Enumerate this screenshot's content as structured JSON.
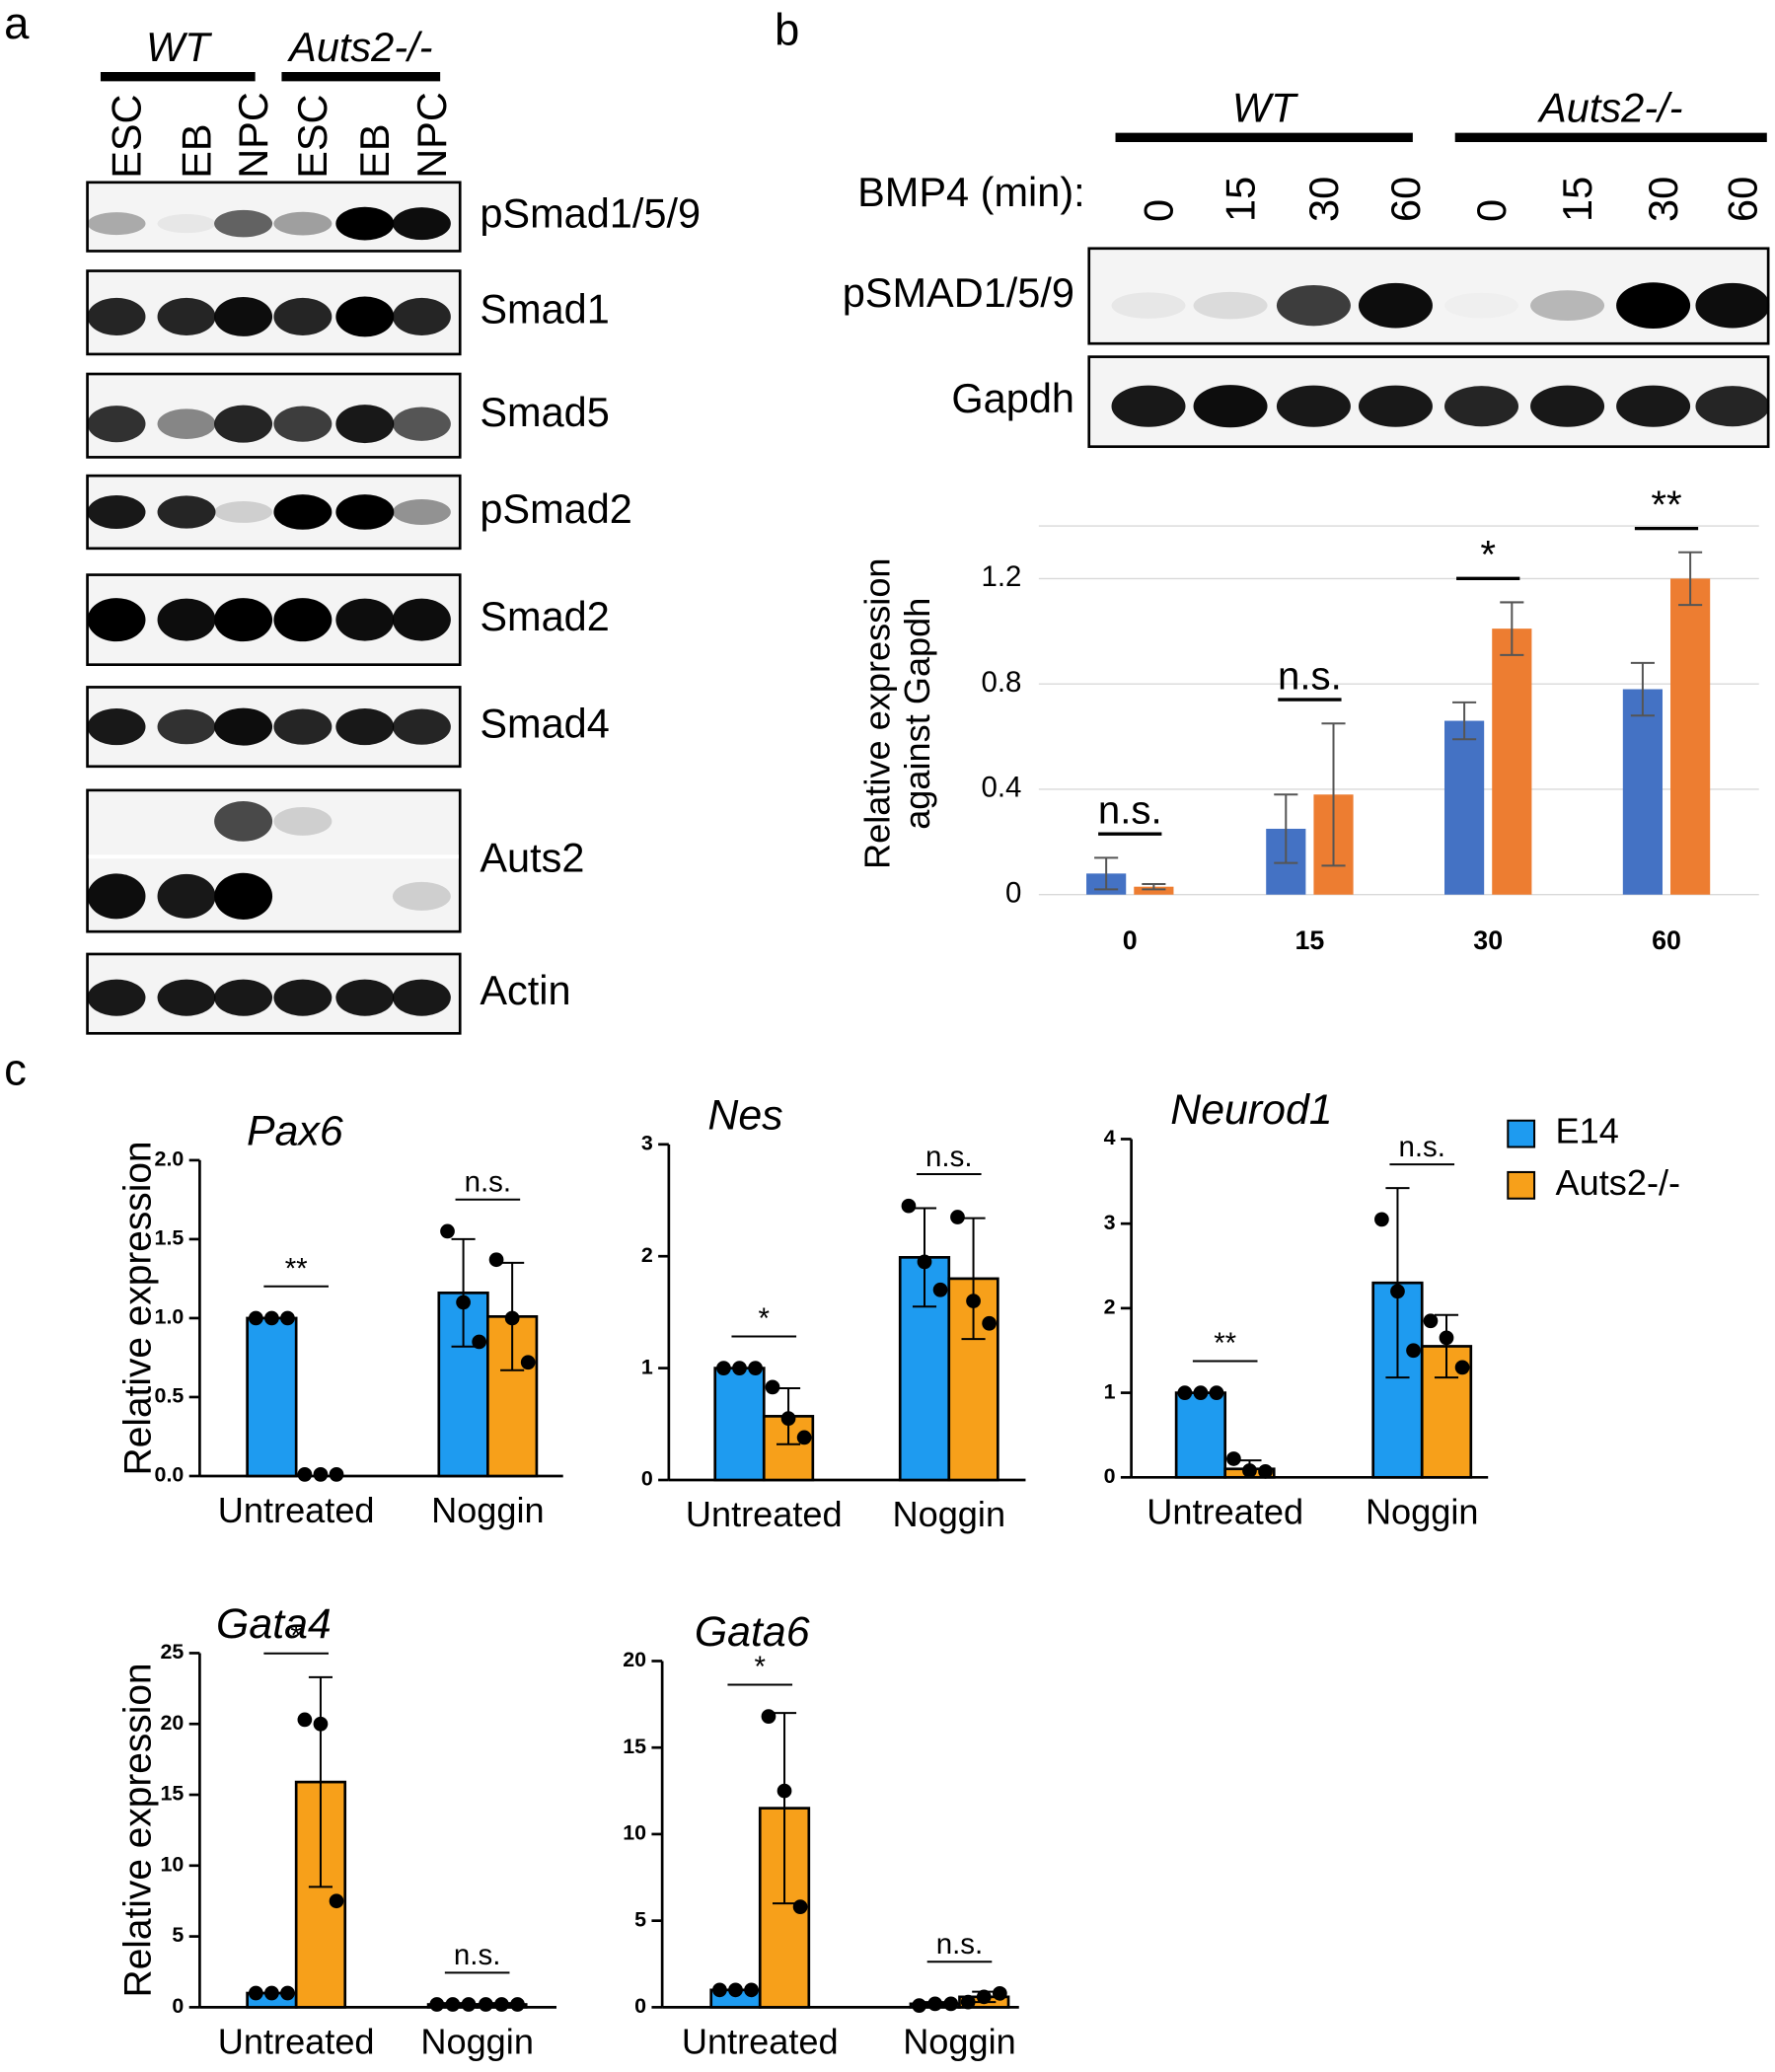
{
  "panel_labels": [
    "a",
    "b",
    "c"
  ],
  "blot_a": {
    "groups": [
      "WT",
      "Auts2-/-"
    ],
    "lanes": [
      "ESC",
      "EB",
      "NPC",
      "ESC",
      "EB",
      "NPC"
    ],
    "rows": [
      "pSmad1/5/9",
      "Smad1",
      "Smad5",
      "pSmad2",
      "Smad2",
      "Smad4",
      "Auts2",
      "Actin"
    ]
  },
  "blot_b": {
    "groups": [
      "WT",
      "Auts2-/-"
    ],
    "lane_title": "BMP4 (min):",
    "lanes": [
      "0",
      "15",
      "30",
      "60",
      "0",
      "15",
      "30",
      "60"
    ],
    "rows": [
      "pSMAD1/5/9",
      "Gapdh"
    ]
  },
  "chart_data": [
    {
      "type": "bar",
      "ylabel": [
        "Relative expression",
        "against Gapdh"
      ],
      "categories": [
        "0",
        "15",
        "30",
        "60"
      ],
      "series": [
        {
          "color": "#4472c4",
          "values": [
            0.08,
            0.25,
            0.66,
            0.78
          ],
          "errors": [
            0.06,
            0.13,
            0.07,
            0.1
          ]
        },
        {
          "color": "#ed7d31",
          "values": [
            0.03,
            0.38,
            1.01,
            1.2
          ],
          "errors": [
            0.01,
            0.27,
            0.1,
            0.1
          ]
        }
      ],
      "annotations": [
        "n.s.",
        "n.s.",
        "*",
        "**"
      ],
      "ylim": [
        0,
        1.4
      ],
      "yticks": [
        0,
        0.4,
        0.8,
        1.2
      ],
      "grid": true
    },
    {
      "type": "bar",
      "title": "Pax6",
      "ylabel": [
        "Relative expression"
      ],
      "categories": [
        "Untreated",
        "Noggin"
      ],
      "series": [
        {
          "color": "#1e9bf0",
          "values": [
            1.0,
            1.16
          ],
          "errors": [
            0,
            0.34
          ],
          "points": [
            [
              1,
              1,
              1
            ],
            [
              1.55,
              1.1,
              0.85
            ]
          ]
        },
        {
          "color": "#f7a01a",
          "values": [
            0.0,
            1.01
          ],
          "errors": [
            0,
            0.34
          ],
          "points": [
            [
              0.01,
              0.01,
              0.01
            ],
            [
              1.37,
              1.0,
              0.72
            ]
          ]
        }
      ],
      "annotations": [
        "**",
        "n.s."
      ],
      "ylim": [
        0,
        2.0
      ],
      "yticks": [
        {
          "value": 0,
          "label": "0.0"
        },
        0.5,
        {
          "value": 1,
          "label": "1.0"
        },
        1.5,
        {
          "value": 2,
          "label": "2.0"
        }
      ]
    },
    {
      "type": "bar",
      "title": "Nes",
      "categories": [
        "Untreated",
        "Noggin"
      ],
      "series": [
        {
          "color": "#1e9bf0",
          "values": [
            1.0,
            1.99
          ],
          "errors": [
            0,
            0.44
          ],
          "points": [
            [
              1,
              1,
              1
            ],
            [
              2.45,
              1.95,
              1.7
            ]
          ]
        },
        {
          "color": "#f7a01a",
          "values": [
            0.57,
            1.8
          ],
          "errors": [
            0.25,
            0.54
          ],
          "points": [
            [
              0.83,
              0.55,
              0.38
            ],
            [
              2.35,
              1.6,
              1.4
            ]
          ]
        }
      ],
      "annotations": [
        "*",
        "n.s."
      ],
      "ylim": [
        0,
        3
      ],
      "yticks": [
        0,
        1,
        2,
        3
      ]
    },
    {
      "type": "bar",
      "title": "Neurod1",
      "categories": [
        "Untreated",
        "Noggin"
      ],
      "legend": "right",
      "series": [
        {
          "name": "E14",
          "color": "#1e9bf0",
          "values": [
            1.0,
            2.3
          ],
          "errors": [
            0,
            1.12
          ],
          "points": [
            [
              1,
              1,
              1
            ],
            [
              3.05,
              2.2,
              1.5
            ]
          ]
        },
        {
          "name": "Auts2-/-",
          "color": "#f7a01a",
          "values": [
            0.1,
            1.55
          ],
          "errors": [
            0.1,
            0.37
          ],
          "points": [
            [
              0.22,
              0.08,
              0.07
            ],
            [
              1.85,
              1.65,
              1.3
            ]
          ]
        }
      ],
      "annotations": [
        "**",
        "n.s."
      ],
      "ylim": [
        0,
        4
      ],
      "yticks": [
        0,
        1,
        2,
        3,
        4
      ]
    },
    {
      "type": "bar",
      "title": "Gata4",
      "ylabel": [
        "Relative expression"
      ],
      "categories": [
        "Untreated",
        "Noggin"
      ],
      "series": [
        {
          "color": "#1e9bf0",
          "values": [
            1.0,
            0.2
          ],
          "errors": [
            0,
            0.1
          ],
          "points": [
            [
              1,
              1,
              1
            ],
            [
              0.2,
              0.2,
              0.2
            ]
          ]
        },
        {
          "color": "#f7a01a",
          "values": [
            15.9,
            0.2
          ],
          "errors": [
            7.4,
            0.1
          ],
          "points": [
            [
              20.3,
              20.0,
              7.5
            ],
            [
              0.2,
              0.2,
              0.2
            ]
          ]
        }
      ],
      "annotations": [
        "*",
        "n.s."
      ],
      "ylim": [
        0,
        25
      ],
      "yticks": [
        0,
        5,
        10,
        15,
        20,
        25
      ]
    },
    {
      "type": "bar",
      "title": "Gata6",
      "categories": [
        "Untreated",
        "Noggin"
      ],
      "series": [
        {
          "color": "#1e9bf0",
          "values": [
            1.0,
            0.2
          ],
          "errors": [
            0,
            0.1
          ],
          "points": [
            [
              1,
              1,
              1
            ],
            [
              0.1,
              0.2,
              0.2
            ]
          ]
        },
        {
          "color": "#f7a01a",
          "values": [
            11.5,
            0.6
          ],
          "errors": [
            5.5,
            0.3
          ],
          "points": [
            [
              16.8,
              12.5,
              5.8
            ],
            [
              0.3,
              0.6,
              0.8
            ]
          ]
        }
      ],
      "annotations": [
        "*",
        "n.s."
      ],
      "ylim": [
        0,
        20
      ],
      "yticks": [
        0,
        5,
        10,
        15,
        20
      ]
    }
  ]
}
